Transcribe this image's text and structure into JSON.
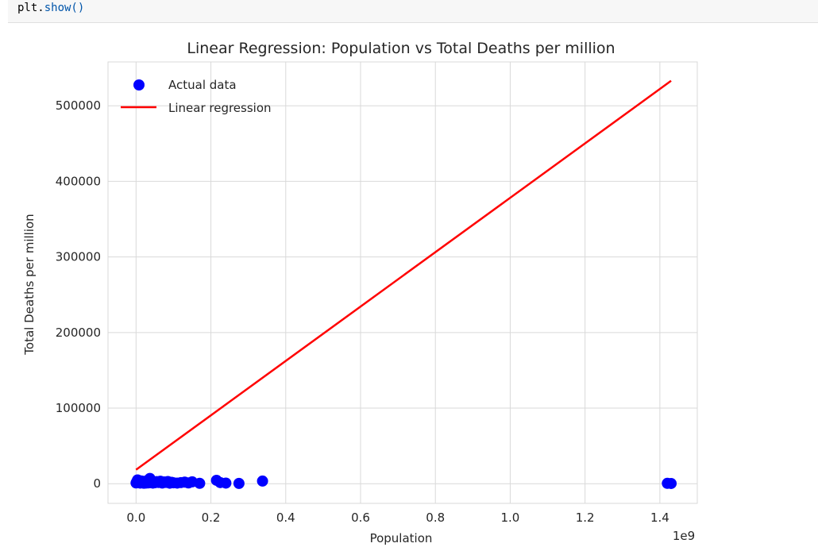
{
  "code": {
    "object": "plt.",
    "method": "show()"
  },
  "chart_data": {
    "type": "scatter",
    "title": "Linear Regression: Population vs Total Deaths per million",
    "xlabel": "Population",
    "ylabel": "Total Deaths per million",
    "x_offset_label": "1e9",
    "xlim": [
      -0.075,
      1.5
    ],
    "ylim": [
      -26000,
      558000
    ],
    "x_ticks": [
      0.0,
      0.2,
      0.4,
      0.6,
      0.8,
      1.0,
      1.2,
      1.4
    ],
    "x_tick_labels": [
      "0.0",
      "0.2",
      "0.4",
      "0.6",
      "0.8",
      "1.0",
      "1.2",
      "1.4"
    ],
    "y_ticks": [
      0,
      100000,
      200000,
      300000,
      400000,
      500000
    ],
    "y_tick_labels": [
      "0",
      "100000",
      "200000",
      "300000",
      "400000",
      "500000"
    ],
    "grid": true,
    "legend_position": "top-left",
    "legend": [
      "Actual data",
      "Linear regression"
    ],
    "colors": {
      "points": "#0000ff",
      "line": "#ff0000",
      "grid": "#d9d9d9",
      "text": "#262626"
    },
    "series": [
      {
        "name": "Actual data",
        "kind": "scatter",
        "points": [
          [
            0.0,
            1000
          ],
          [
            0.002,
            3000
          ],
          [
            0.004,
            5000
          ],
          [
            0.005,
            1500
          ],
          [
            0.007,
            2500
          ],
          [
            0.009,
            4000
          ],
          [
            0.011,
            800
          ],
          [
            0.013,
            2000
          ],
          [
            0.015,
            3500
          ],
          [
            0.017,
            1200
          ],
          [
            0.019,
            2800
          ],
          [
            0.021,
            600
          ],
          [
            0.023,
            1800
          ],
          [
            0.025,
            3200
          ],
          [
            0.027,
            900
          ],
          [
            0.029,
            2200
          ],
          [
            0.031,
            4500
          ],
          [
            0.033,
            1100
          ],
          [
            0.035,
            2600
          ],
          [
            0.037,
            7000
          ],
          [
            0.039,
            1400
          ],
          [
            0.042,
            3000
          ],
          [
            0.045,
            800
          ],
          [
            0.048,
            2100
          ],
          [
            0.05,
            1300
          ],
          [
            0.055,
            2700
          ],
          [
            0.06,
            1600
          ],
          [
            0.065,
            3300
          ],
          [
            0.07,
            900
          ],
          [
            0.075,
            2400
          ],
          [
            0.08,
            1700
          ],
          [
            0.085,
            2900
          ],
          [
            0.09,
            700
          ],
          [
            0.095,
            1900
          ],
          [
            0.1,
            1200
          ],
          [
            0.11,
            800
          ],
          [
            0.12,
            1500
          ],
          [
            0.13,
            2100
          ],
          [
            0.14,
            1000
          ],
          [
            0.15,
            2500
          ],
          [
            0.17,
            500
          ],
          [
            0.215,
            4500
          ],
          [
            0.225,
            1500
          ],
          [
            0.24,
            800
          ],
          [
            0.275,
            400
          ],
          [
            0.338,
            3500
          ],
          [
            1.42,
            500
          ],
          [
            1.43,
            300
          ]
        ]
      },
      {
        "name": "Linear regression",
        "kind": "line",
        "points": [
          [
            0.0,
            18500
          ],
          [
            1.43,
            533000
          ]
        ]
      }
    ]
  }
}
